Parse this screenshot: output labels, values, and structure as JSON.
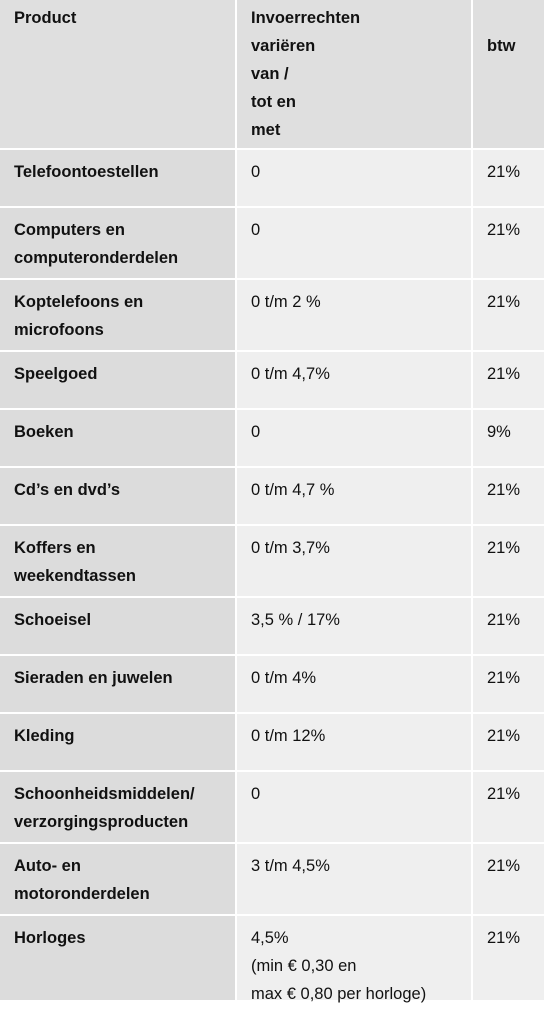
{
  "table": {
    "headers": [
      "Product",
      "Invoerrechten\nvariëren\nvan /\ntot en\nmet",
      "btw"
    ],
    "rows": [
      {
        "product": "Telefoontoestellen",
        "duty": "0",
        "vat": "21%"
      },
      {
        "product": "Computers en\ncomputeronderdelen",
        "duty": "0",
        "vat": "21%"
      },
      {
        "product": "Koptelefoons en\nmicrofoons",
        "duty": "0 t/m 2 %",
        "vat": "21%"
      },
      {
        "product": "Speelgoed",
        "duty": "0 t/m 4,7%",
        "vat": "21%"
      },
      {
        "product": "Boeken",
        "duty": "0",
        "vat": "9%"
      },
      {
        "product": "Cd’s en dvd’s",
        "duty": "0 t/m 4,7 %",
        "vat": "21%"
      },
      {
        "product": "Koffers en\nweekendtassen",
        "duty": "0 t/m 3,7%",
        "vat": "21%"
      },
      {
        "product": "Schoeisel",
        "duty": "3,5 % / 17%",
        "vat": "21%"
      },
      {
        "product": "Sieraden en juwelen",
        "duty": "0 t/m 4%",
        "vat": "21%"
      },
      {
        "product": "Kleding",
        "duty": "0 t/m 12%",
        "vat": "21%"
      },
      {
        "product": "Schoonheidsmiddelen/\nverzorgingsproducten",
        "duty": "0",
        "vat": "21%"
      },
      {
        "product": "Auto- en\nmotoronderdelen",
        "duty": "3 t/m 4,5%",
        "vat": "21%"
      },
      {
        "product": "Horloges",
        "duty": "4,5%\n(min € 0,30 en\nmax € 0,80 per horloge)",
        "vat": "21%"
      }
    ]
  }
}
